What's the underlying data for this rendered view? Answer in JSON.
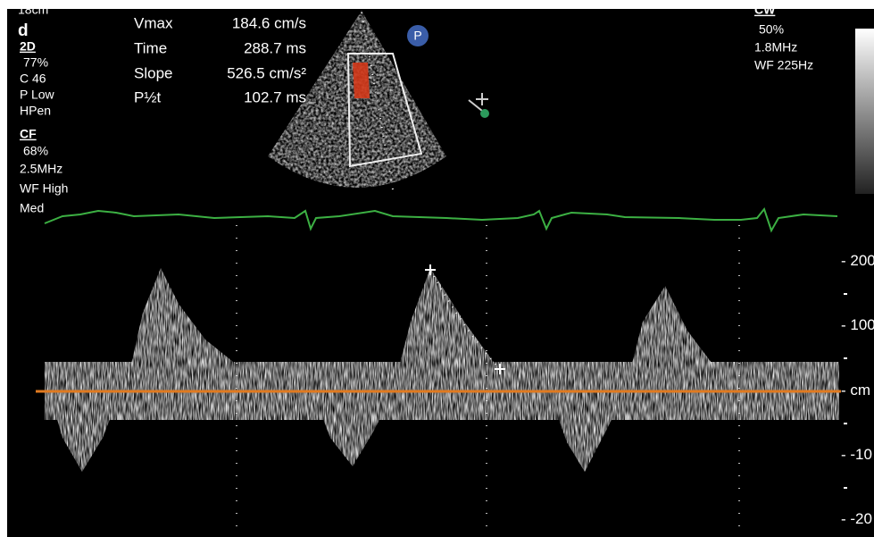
{
  "header": {
    "depth": "18cm",
    "panel": "d"
  },
  "left_settings": [
    "2D",
    "77%",
    "C 46",
    "P Low",
    "HPen",
    "CF",
    "68%",
    "2.5MHz",
    "WF High",
    "Med"
  ],
  "measurements": [
    {
      "label": "Vmax",
      "value": "184.6 cm/s"
    },
    {
      "label": "Time",
      "value": "288.7 ms"
    },
    {
      "label": "Slope",
      "value": "526.5 cm/s²"
    },
    {
      "label": "P½t",
      "value": "102.7 ms"
    }
  ],
  "probe_marker": "P",
  "right_settings": [
    "CW",
    "50%",
    "1.8MHz",
    "WF 225Hz"
  ],
  "velocity_scale": [
    "200",
    "100",
    "cm",
    "-10",
    "-20"
  ]
}
